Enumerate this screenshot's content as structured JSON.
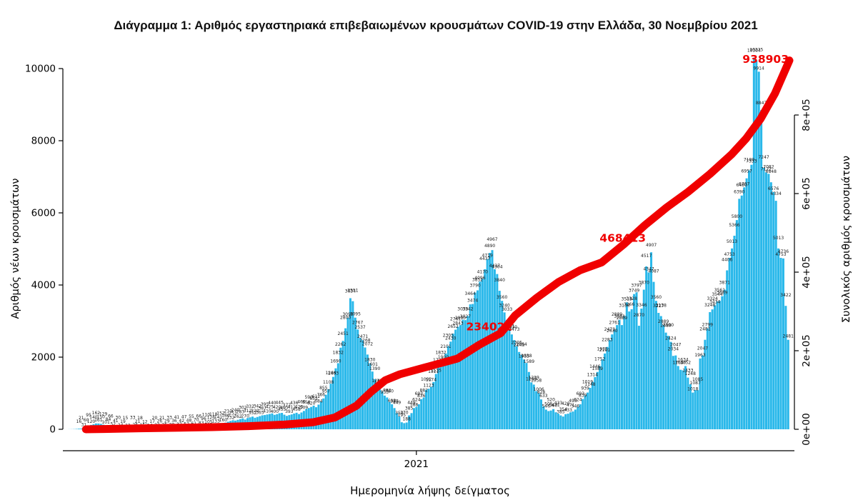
{
  "title": "Διάγραμμα 1: Αριθμός εργαστηριακά επιβεβαιωμένων κρουσμάτων COVID-19 στην Ελλάδα, 30 Νοεμβρίου 2021",
  "chart_data": {
    "type": "combo-bar-line",
    "bar_series": {
      "name": "Αριθμός νέων κρουσμάτων (ημερήσια)",
      "color": "#29b8ea",
      "values": [
        2,
        3,
        5,
        10,
        16,
        21,
        31,
        60,
        95,
        120,
        140,
        162,
        161,
        150,
        129,
        101,
        84,
        66,
        52,
        41,
        30,
        24,
        19,
        15,
        12,
        10,
        33,
        26,
        21,
        18,
        15,
        12,
        10,
        14,
        17,
        20,
        23,
        26,
        21,
        25,
        29,
        33,
        30,
        36,
        41,
        37,
        42,
        47,
        52,
        48,
        55,
        61,
        70,
        66,
        83,
        96,
        110,
        105,
        126,
        118,
        133,
        141,
        152,
        160,
        186,
        210,
        232,
        251,
        240,
        262,
        283,
        302,
        270,
        312,
        332,
        352,
        320,
        342,
        365,
        387,
        395,
        410,
        425,
        440,
        400,
        420,
        445,
        455,
        405,
        372,
        393,
        412,
        436,
        458,
        423,
        466,
        509,
        558,
        590,
        620,
        655,
        612,
        684,
        766,
        855,
        957,
        1108,
        1264,
        1453,
        1690,
        1832,
        2262,
        2451,
        2800,
        3090,
        3634,
        3551,
        3095,
        2767,
        2537,
        2471,
        2268,
        2072,
        1830,
        1601,
        1390,
        1248,
        1123,
        1047,
        933,
        882,
        760,
        693,
        588,
        449,
        354,
        195,
        170,
        188,
        385,
        449,
        588,
        624,
        693,
        836,
        882,
        1092,
        1123,
        1174,
        1311,
        1535,
        1723,
        1832,
        1900,
        2101,
        2305,
        2430,
        2652,
        2761,
        2843,
        2890,
        3039,
        3027,
        3142,
        3464,
        3474,
        3790,
        3852,
        4096,
        4170,
        4437,
        4719,
        4890,
        4967,
        4437,
        4304,
        3840,
        3560,
        3240,
        3033,
        2761,
        2630,
        2473,
        2305,
        2143,
        2064,
        1935,
        1838,
        1589,
        1299,
        1239,
        1058,
        1006,
        828,
        633,
        546,
        505,
        520,
        560,
        471,
        433,
        385,
        354,
        420,
        433,
        471,
        493,
        546,
        624,
        693,
        839,
        939,
        1019,
        1148,
        1314,
        1446,
        1589,
        1752,
        1935,
        2101,
        2283,
        2473,
        2630,
        2761,
        2889,
        3033,
        2889,
        3138,
        3519,
        3266,
        3328,
        3749,
        3797,
        2870,
        3346,
        3870,
        4517,
        4347,
        4907,
        4087,
        3560,
        3227,
        3138,
        2889,
        2680,
        2590,
        2424,
        2034,
        2047,
        1754,
        1650,
        1634,
        1752,
        1433,
        1248,
        1018,
        1087,
        1085,
        1963,
        2047,
        2481,
        2799,
        3248,
        3324,
        3434,
        3544,
        3561,
        3689,
        3871,
        4406,
        4753,
        5013,
        5366,
        5800,
        6390,
        6480,
        6707,
        6957,
        7180,
        7333,
        10304,
        10225,
        9914,
        8847,
        7247,
        7122,
        7082,
        6848,
        6576,
        6334,
        5013,
        4753,
        4736,
        3422,
        2481
      ]
    },
    "line_series": {
      "name": "Συνολικός αριθμός κρουσμάτων (αθροιστικά)",
      "color": "#f00000",
      "final_value": 938903,
      "points": [
        [
          0.025,
          0
        ],
        [
          0.05,
          800
        ],
        [
          0.1,
          2500
        ],
        [
          0.15,
          3800
        ],
        [
          0.2,
          5500
        ],
        [
          0.25,
          8000
        ],
        [
          0.3,
          12000
        ],
        [
          0.34,
          18000
        ],
        [
          0.37,
          30000
        ],
        [
          0.4,
          60000
        ],
        [
          0.42,
          95000
        ],
        [
          0.44,
          125000
        ],
        [
          0.46,
          140000
        ],
        [
          0.5,
          160000
        ],
        [
          0.54,
          180000
        ],
        [
          0.57,
          215000
        ],
        [
          0.6,
          245000
        ],
        [
          0.62,
          290000
        ],
        [
          0.65,
          335000
        ],
        [
          0.68,
          375000
        ],
        [
          0.71,
          405000
        ],
        [
          0.74,
          425000
        ],
        [
          0.77,
          470000
        ],
        [
          0.8,
          520000
        ],
        [
          0.83,
          565000
        ],
        [
          0.86,
          605000
        ],
        [
          0.89,
          650000
        ],
        [
          0.92,
          700000
        ],
        [
          0.94,
          740000
        ],
        [
          0.96,
          790000
        ],
        [
          0.98,
          855000
        ],
        [
          1.0,
          938903
        ]
      ]
    },
    "left_axis": {
      "label": "Αριθμός νέων κρουσμάτων",
      "range": [
        0,
        10000
      ],
      "ticks": [
        {
          "value": 0,
          "label": "0"
        },
        {
          "value": 2000,
          "label": "2000"
        },
        {
          "value": 4000,
          "label": "4000"
        },
        {
          "value": 6000,
          "label": "6000"
        },
        {
          "value": 8000,
          "label": "8000"
        },
        {
          "value": 10000,
          "label": "10000"
        }
      ]
    },
    "right_axis": {
      "label": "Συνολικός αριθμός κρουσμάτων",
      "range": [
        0,
        956000
      ],
      "ticks": [
        {
          "value": 0,
          "label": "0e+00"
        },
        {
          "value": 200000,
          "label": "2e+05"
        },
        {
          "value": 400000,
          "label": "4e+05"
        },
        {
          "value": 600000,
          "label": "6e+05"
        },
        {
          "value": 800000,
          "label": "8e+05"
        }
      ]
    },
    "x_axis": {
      "label": "Ημερομηνία λήψης δείγματος",
      "tick_labels": [
        "2021"
      ],
      "tick_frac": [
        0.483
      ]
    },
    "annotations": [
      {
        "text": "234022",
        "fx": 0.584,
        "fy": 0.697,
        "layer": "below"
      },
      {
        "text": "468413",
        "fx": 0.769,
        "fy": 0.474,
        "layer": "below"
      },
      {
        "text": "938903",
        "fx": 0.967,
        "fy": 0.023,
        "layer": "above"
      }
    ]
  }
}
